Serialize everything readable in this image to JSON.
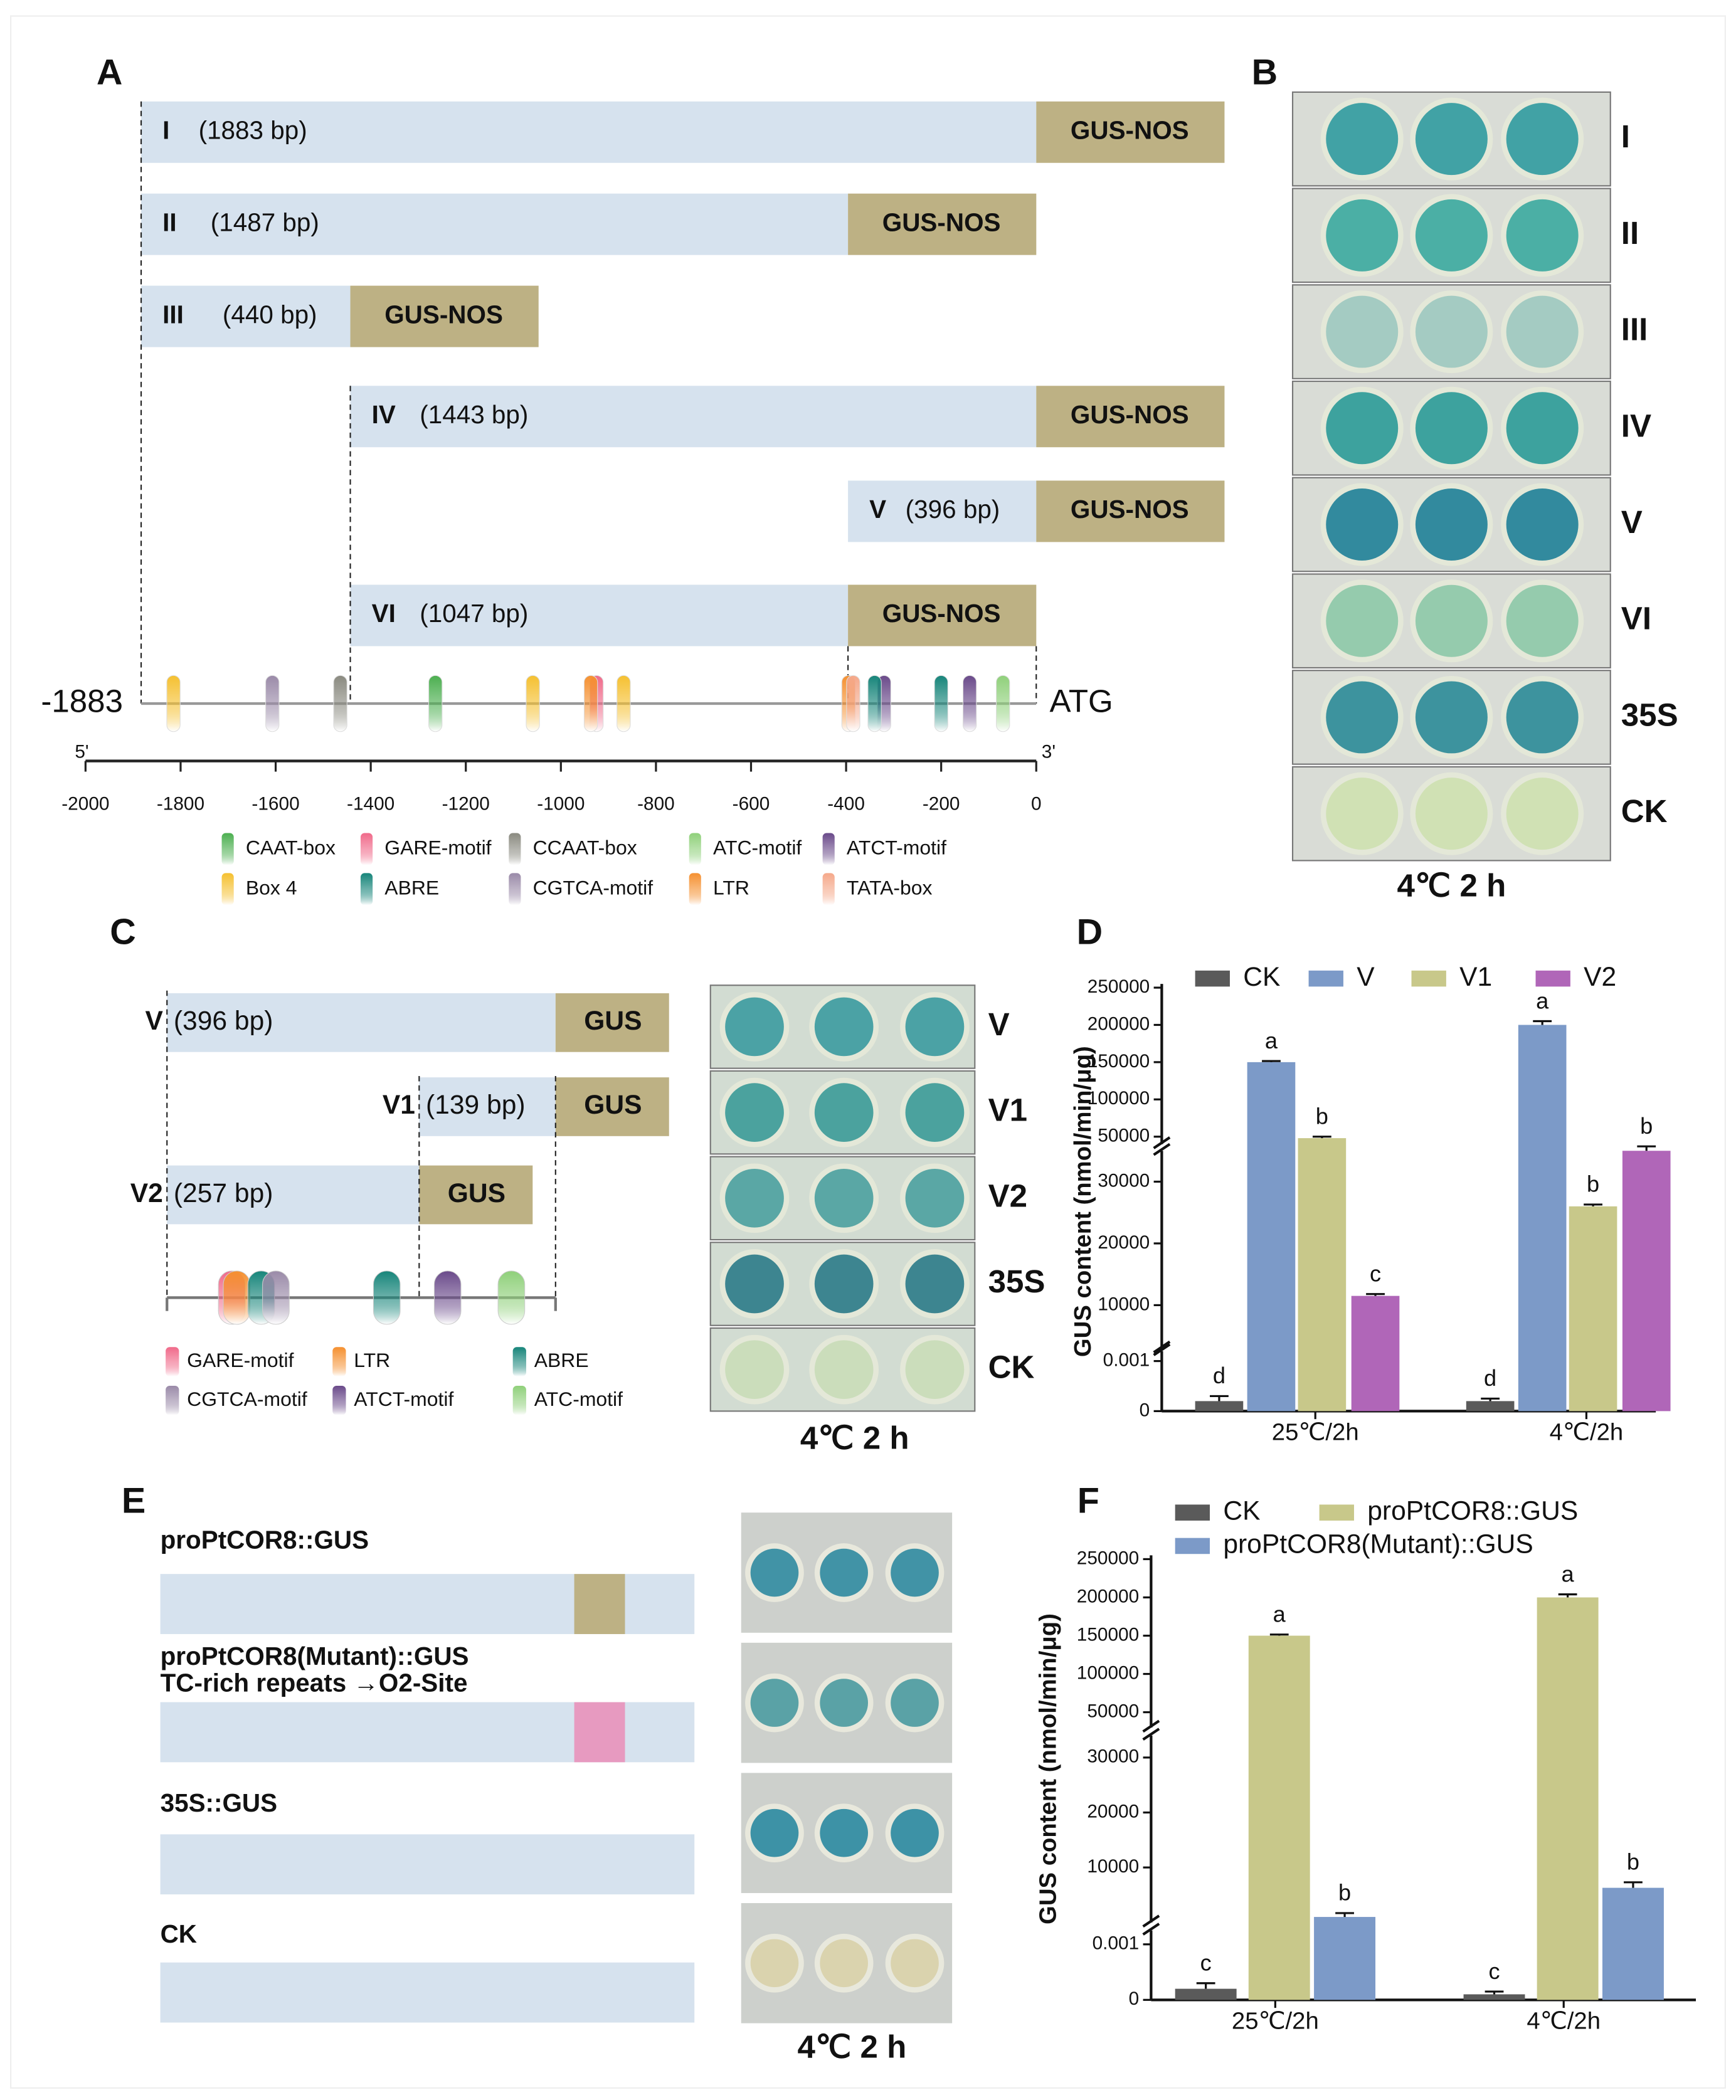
{
  "panel_labels": [
    "A",
    "B",
    "C",
    "D",
    "E",
    "F"
  ],
  "panel_a": {
    "constructs": [
      {
        "name": "I",
        "length": "(1883 bp)",
        "start": -1883,
        "end": 0,
        "reporter": "GUS-NOS"
      },
      {
        "name": "II",
        "length": "(1487 bp)",
        "start": -1883,
        "end": -396,
        "reporter": "GUS-NOS"
      },
      {
        "name": "III",
        "length": "(440 bp)",
        "start": -1883,
        "end": -1443,
        "reporter": "GUS-NOS"
      },
      {
        "name": "IV",
        "length": "(1443 bp)",
        "start": -1443,
        "end": 0,
        "reporter": "GUS-NOS"
      },
      {
        "name": "V",
        "length": "(396 bp)",
        "start": -396,
        "end": 0,
        "reporter": "GUS-NOS"
      },
      {
        "name": "VI",
        "length": "(1047 bp)",
        "start": -1443,
        "end": -396,
        "reporter": "GUS-NOS"
      }
    ],
    "start_label": "-1883",
    "end_label": "ATG",
    "five_prime": "5'",
    "three_prime": "3'",
    "xlim": [
      -2000,
      0
    ],
    "xticks": [
      -2000,
      -1800,
      -1600,
      -1400,
      -1200,
      -1000,
      -800,
      -600,
      -400,
      -200,
      0
    ],
    "motifs": [
      {
        "name": "CAAT-box",
        "color": "#4caf50",
        "positions": [
          -1264
        ]
      },
      {
        "name": "GARE-motif",
        "color": "#f06a8a",
        "positions": [
          -925
        ]
      },
      {
        "name": "CCAAT-box",
        "color": "#8a8a80",
        "positions": [
          -1464
        ]
      },
      {
        "name": "ATC-motif",
        "color": "#8fd07a",
        "positions": [
          -70
        ]
      },
      {
        "name": "ATCT-motif",
        "color": "#6a4a8a",
        "positions": [
          -320,
          -140
        ]
      },
      {
        "name": "Box 4",
        "color": "#f5c030",
        "positions": [
          -1815,
          -1059,
          -868
        ]
      },
      {
        "name": "ABRE",
        "color": "#17857a",
        "positions": [
          -340,
          -200
        ]
      },
      {
        "name": "CGTCA-motif",
        "color": "#9a8aa8",
        "positions": [
          -1607
        ]
      },
      {
        "name": "LTR",
        "color": "#f59030",
        "positions": [
          -395,
          -937
        ]
      },
      {
        "name": "TATA-box",
        "color": "#f5a88a",
        "positions": [
          -385
        ]
      }
    ]
  },
  "panel_b": {
    "rows": [
      {
        "label": "I",
        "color": "#2f9aa0"
      },
      {
        "label": "II",
        "color": "#3aa8a0"
      },
      {
        "label": "III",
        "color": "#9cc8c0"
      },
      {
        "label": "IV",
        "color": "#2a9a98"
      },
      {
        "label": "V",
        "color": "#1e7f98"
      },
      {
        "label": "VI",
        "color": "#8cc8a8"
      },
      {
        "label": "35S",
        "color": "#2a8a98"
      },
      {
        "label": "CK",
        "color": "#cde0b0"
      }
    ],
    "caption": "4℃  2 h"
  },
  "panel_c": {
    "constructs": [
      {
        "name": "V",
        "length": "(396 bp)",
        "start": -396,
        "end": 0,
        "reporter": "GUS"
      },
      {
        "name": "V1",
        "length": "(139 bp)",
        "start": -139,
        "end": 0,
        "reporter": "GUS"
      },
      {
        "name": "V2",
        "length": "(257 bp)",
        "start": -396,
        "end": -139,
        "reporter": "GUS"
      }
    ],
    "xlim": [
      -396,
      0
    ],
    "motifs": [
      {
        "name": "GARE-motif",
        "color": "#f06a8a",
        "positions": [
          -330
        ]
      },
      {
        "name": "LTR",
        "color": "#f59030",
        "positions": [
          -325
        ]
      },
      {
        "name": "ABRE",
        "color": "#17857a",
        "positions": [
          -300,
          -172
        ]
      },
      {
        "name": "CGTCA-motif",
        "color": "#9a8aa8",
        "positions": [
          -285
        ]
      },
      {
        "name": "ATCT-motif",
        "color": "#6a4a8a",
        "positions": [
          -110
        ]
      },
      {
        "name": "ATC-motif",
        "color": "#8fd07a",
        "positions": [
          -45
        ]
      }
    ],
    "rows": [
      {
        "label": "V",
        "color": "#3a9aa0"
      },
      {
        "label": "V1",
        "color": "#3a9a98"
      },
      {
        "label": "V2",
        "color": "#4aa0a0"
      },
      {
        "label": "35S",
        "color": "#2a7a88"
      },
      {
        "label": "CK",
        "color": "#c8dcb8"
      }
    ],
    "caption": "4℃  2 h"
  },
  "panel_e": {
    "rows": [
      {
        "title": "proPtCOR8::GUS",
        "color": "#2f8aa0"
      },
      {
        "title": "proPtCOR8(Mutant)::GUS",
        "subtitle": "TC-rich repeats →O2-Site",
        "color": "#4a9aa0"
      },
      {
        "title": "35S::GUS",
        "color": "#2a88a0"
      },
      {
        "title": "CK",
        "color": "#d8d0a8"
      }
    ],
    "caption": "4℃  2 h"
  },
  "chart_data": [
    {
      "type": "bar",
      "y_label": "GUS content (nmol/min/μg)",
      "categories": [
        "25℃/2h",
        "4℃/2h"
      ],
      "segments": [
        {
          "ylim": [
            0,
            0.0012
          ],
          "yticks": [
            0,
            0.001
          ]
        },
        {
          "ylim": [
            3000,
            35000
          ],
          "yticks": [
            10000,
            20000,
            30000
          ]
        },
        {
          "ylim": [
            40000,
            255000
          ],
          "yticks": [
            50000,
            100000,
            150000,
            200000,
            250000
          ]
        }
      ],
      "series": [
        {
          "name": "CK",
          "color": "#5a5a5a",
          "values": [
            0.0002,
            0.0002
          ],
          "errors": [
            0.0001,
            5e-05
          ],
          "letters": [
            "d",
            "d"
          ]
        },
        {
          "name": "V",
          "color": "#7c9ac8",
          "values": [
            150000,
            200000
          ],
          "errors": [
            1500,
            5000
          ],
          "letters": [
            "a",
            "a"
          ]
        },
        {
          "name": "V1",
          "color": "#c8c88a",
          "values": [
            48000,
            26000
          ],
          "errors": [
            2000,
            300
          ],
          "letters": [
            "b",
            "b"
          ]
        },
        {
          "name": "V2",
          "color": "#b066b8",
          "values": [
            11500,
            35000
          ],
          "errors": [
            300,
            2000
          ],
          "letters": [
            "c",
            "b"
          ]
        }
      ]
    },
    {
      "type": "bar",
      "y_label": "GUS content (nmol/min/μg)",
      "categories": [
        "25℃/2h",
        "4℃/2h"
      ],
      "segments": [
        {
          "ylim": [
            0,
            0.00125
          ],
          "yticks": [
            0,
            0.001
          ]
        },
        {
          "ylim": [
            0,
            34000
          ],
          "yticks": [
            10000,
            20000,
            30000
          ]
        },
        {
          "ylim": [
            30000,
            255000
          ],
          "yticks": [
            50000,
            100000,
            150000,
            200000,
            250000
          ]
        }
      ],
      "series": [
        {
          "name": "CK",
          "color": "#5a5a5a",
          "values": [
            0.0002,
            0.0001
          ],
          "errors": [
            0.0001,
            5e-05
          ],
          "letters": [
            "c",
            "c"
          ]
        },
        {
          "name": "proPtCOR8::GUS",
          "color": "#c8c88a",
          "values": [
            150000,
            200000
          ],
          "errors": [
            1500,
            4000
          ],
          "letters": [
            "a",
            "a"
          ]
        },
        {
          "name": "proPtCOR8(Mutant)::GUS",
          "color": "#7c9ac8",
          "values": [
            1000,
            6300
          ],
          "errors": [
            700,
            1000
          ],
          "letters": [
            "b",
            "b"
          ]
        }
      ]
    }
  ]
}
